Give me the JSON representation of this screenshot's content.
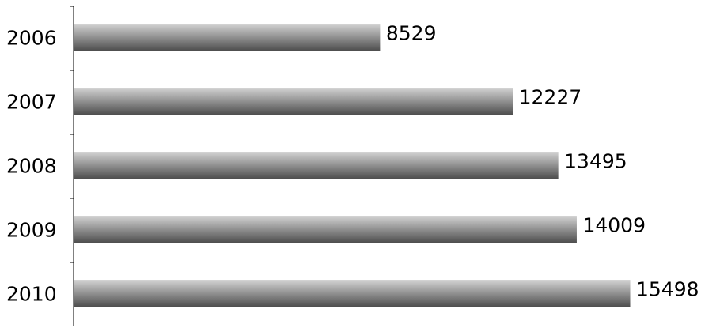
{
  "chart_data": {
    "type": "bar",
    "orientation": "horizontal",
    "categories": [
      "2006",
      "2007",
      "2008",
      "2009",
      "2010"
    ],
    "values": [
      8529,
      12227,
      13495,
      14009,
      15498
    ],
    "title": "",
    "xlabel": "",
    "ylabel": "",
    "xlim": [
      0,
      15498
    ],
    "grid": false,
    "legend": "none",
    "bar_gradient": [
      "#d4d4d4",
      "#4a4a4a"
    ],
    "data_labels": [
      "8529",
      "12227",
      "13495",
      "14009",
      "15498"
    ]
  }
}
